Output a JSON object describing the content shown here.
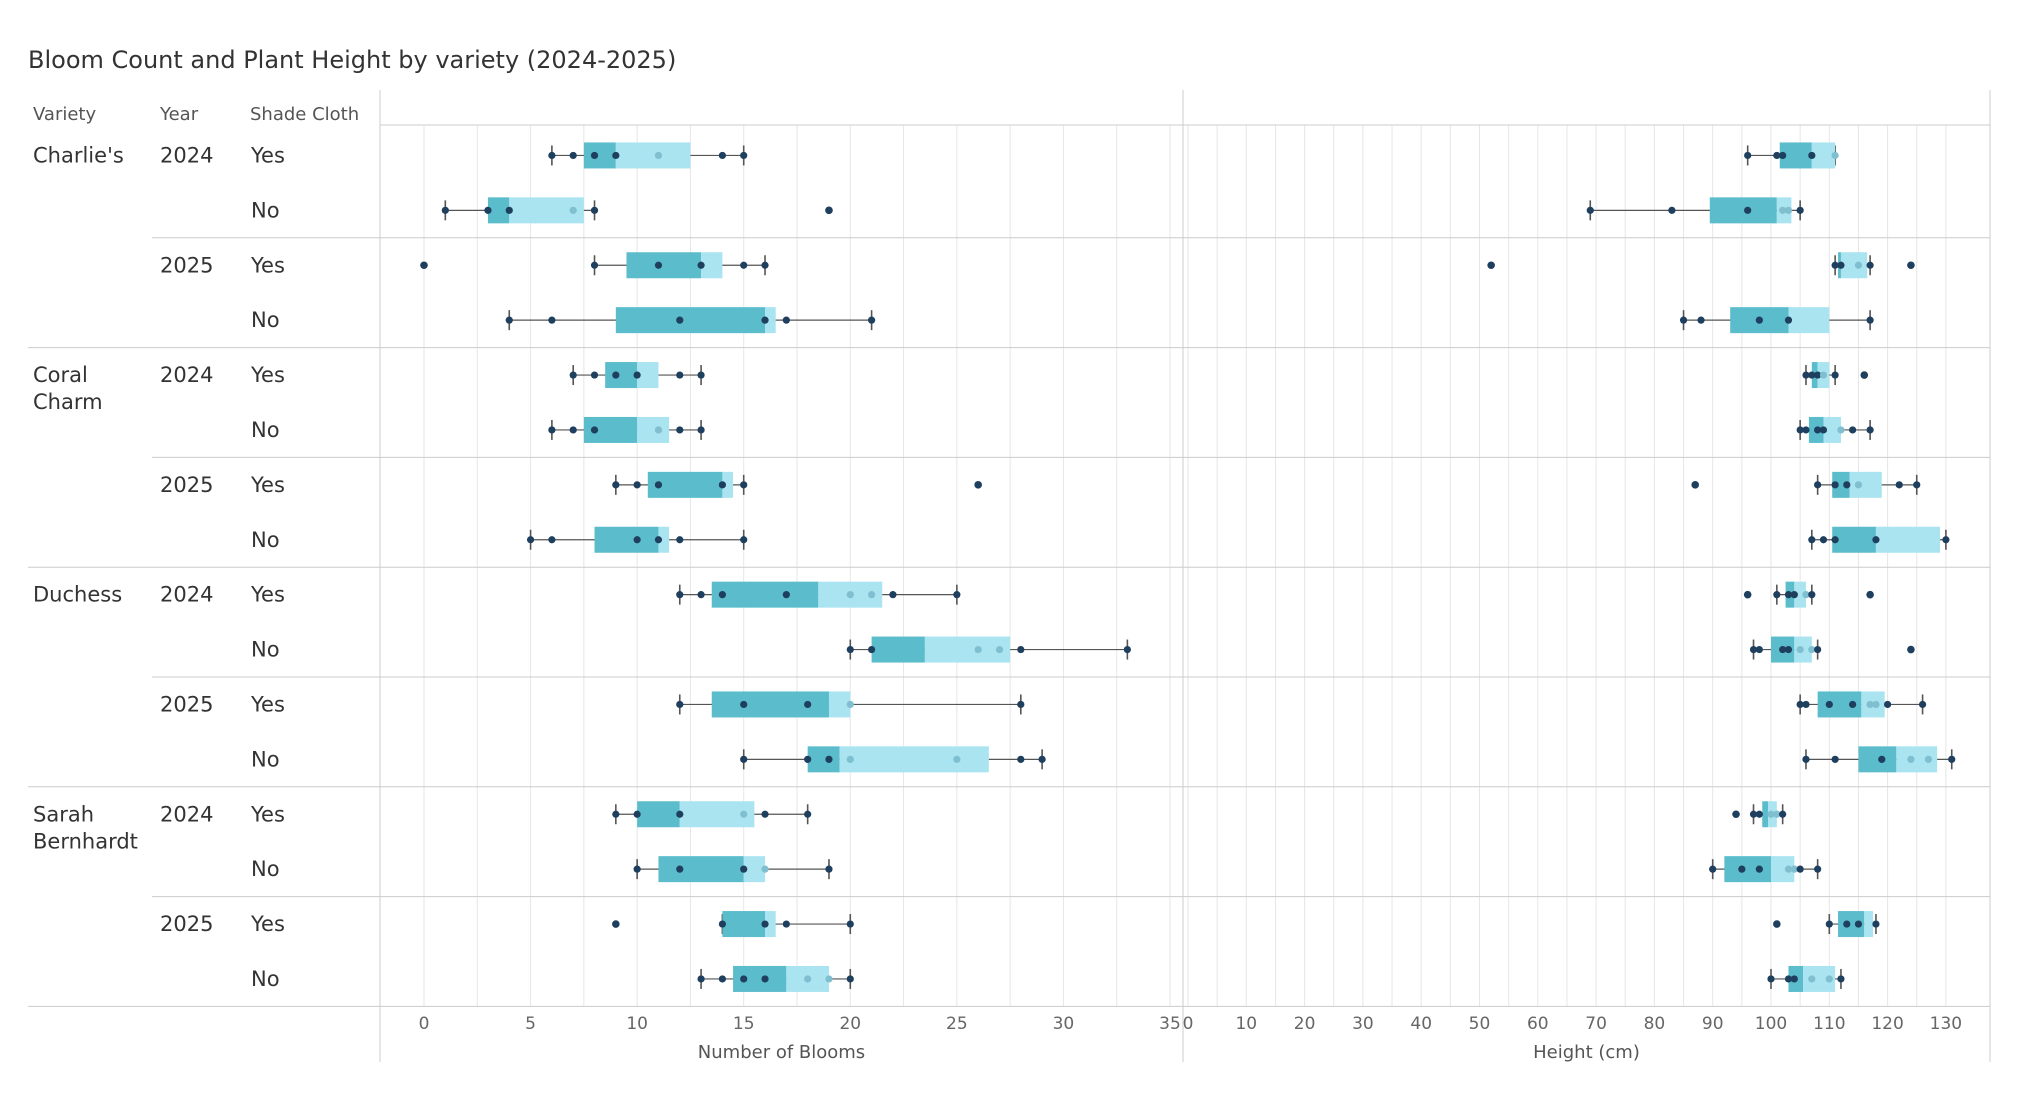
{
  "title": "Bloom Count and Plant Height by variety (2024-2025)",
  "colors": {
    "q1_box": "#5bbccc",
    "q3_box": "#a9e4f0",
    "point": "#1f3f5f",
    "point_faint": "#7fbfd0",
    "whisker": "#555555",
    "grid": "#e6e6e6",
    "divider": "#cccccc"
  },
  "headers": {
    "variety": "Variety",
    "year": "Year",
    "shade": "Shade Cloth"
  },
  "chart_data": [
    {
      "type": "box",
      "xlabel": "Number of Blooms",
      "xlim": [
        -2,
        35
      ],
      "ticks": [
        "0",
        "5",
        "10",
        "15",
        "20",
        "25",
        "30",
        "35"
      ],
      "tick_values": [
        0,
        5,
        10,
        15,
        20,
        25,
        30,
        35
      ],
      "rows": [
        {
          "variety": "Charlie's",
          "year": "2024",
          "shade": "Yes",
          "whisker": [
            6,
            15
          ],
          "box": [
            7.5,
            9,
            12.5
          ],
          "points": [
            6,
            7,
            8,
            9,
            11,
            14,
            15
          ],
          "outliers": []
        },
        {
          "variety": "Charlie's",
          "year": "2024",
          "shade": "No",
          "whisker": [
            1,
            8
          ],
          "box": [
            3,
            4,
            7.5
          ],
          "points": [
            1,
            3,
            4,
            7,
            8
          ],
          "outliers": [
            19
          ]
        },
        {
          "variety": "Charlie's",
          "year": "2025",
          "shade": "Yes",
          "whisker": [
            8,
            16
          ],
          "box": [
            9.5,
            13,
            14
          ],
          "points": [
            8,
            11,
            13,
            15,
            16
          ],
          "outliers": [
            0
          ]
        },
        {
          "variety": "Charlie's",
          "year": "2025",
          "shade": "No",
          "whisker": [
            4,
            21
          ],
          "box": [
            9,
            16,
            16.5
          ],
          "points": [
            4,
            6,
            12,
            16,
            17,
            21
          ],
          "outliers": []
        },
        {
          "variety": "Coral Charm",
          "year": "2024",
          "shade": "Yes",
          "whisker": [
            7,
            13
          ],
          "box": [
            8.5,
            10,
            11
          ],
          "points": [
            7,
            8,
            9,
            10,
            12,
            13
          ],
          "outliers": []
        },
        {
          "variety": "Coral Charm",
          "year": "2024",
          "shade": "No",
          "whisker": [
            6,
            13
          ],
          "box": [
            7.5,
            10,
            11.5
          ],
          "points": [
            6,
            7,
            8,
            11,
            12,
            13
          ],
          "outliers": []
        },
        {
          "variety": "Coral Charm",
          "year": "2025",
          "shade": "Yes",
          "whisker": [
            9,
            15
          ],
          "box": [
            10.5,
            14,
            14.5
          ],
          "points": [
            9,
            10,
            11,
            14,
            15
          ],
          "outliers": [
            26
          ]
        },
        {
          "variety": "Coral Charm",
          "year": "2025",
          "shade": "No",
          "whisker": [
            5,
            15
          ],
          "box": [
            8,
            11,
            11.5
          ],
          "points": [
            5,
            6,
            10,
            11,
            12,
            15
          ],
          "outliers": []
        },
        {
          "variety": "Duchess",
          "year": "2024",
          "shade": "Yes",
          "whisker": [
            12,
            25
          ],
          "box": [
            13.5,
            18.5,
            21.5
          ],
          "points": [
            12,
            13,
            14,
            17,
            20,
            21,
            22,
            25
          ],
          "outliers": []
        },
        {
          "variety": "Duchess",
          "year": "2024",
          "shade": "No",
          "whisker": [
            20,
            33
          ],
          "box": [
            21,
            23.5,
            27.5
          ],
          "points": [
            20,
            21,
            26,
            27,
            28,
            33
          ],
          "outliers": []
        },
        {
          "variety": "Duchess",
          "year": "2025",
          "shade": "Yes",
          "whisker": [
            12,
            28
          ],
          "box": [
            13.5,
            19,
            20
          ],
          "points": [
            12,
            15,
            18,
            20,
            28
          ],
          "outliers": []
        },
        {
          "variety": "Duchess",
          "year": "2025",
          "shade": "No",
          "whisker": [
            15,
            29
          ],
          "box": [
            18,
            19.5,
            26.5
          ],
          "points": [
            15,
            18,
            19,
            20,
            25,
            28,
            29
          ],
          "outliers": []
        },
        {
          "variety": "Sarah Bernhardt",
          "year": "2024",
          "shade": "Yes",
          "whisker": [
            9,
            18
          ],
          "box": [
            10,
            12,
            15.5
          ],
          "points": [
            9,
            10,
            12,
            15,
            16,
            18
          ],
          "outliers": []
        },
        {
          "variety": "Sarah Bernhardt",
          "year": "2024",
          "shade": "No",
          "whisker": [
            10,
            19
          ],
          "box": [
            11,
            15,
            16
          ],
          "points": [
            10,
            12,
            15,
            16,
            19
          ],
          "outliers": []
        },
        {
          "variety": "Sarah Bernhardt",
          "year": "2025",
          "shade": "Yes",
          "whisker": [
            14,
            20
          ],
          "box": [
            14,
            16,
            16.5
          ],
          "points": [
            14,
            16,
            17,
            20
          ],
          "outliers": [
            9
          ]
        },
        {
          "variety": "Sarah Bernhardt",
          "year": "2025",
          "shade": "No",
          "whisker": [
            13,
            20
          ],
          "box": [
            14.5,
            17,
            19
          ],
          "points": [
            13,
            14,
            15,
            16,
            18,
            19,
            20
          ],
          "outliers": []
        }
      ]
    },
    {
      "type": "box",
      "xlabel": "Height (cm)",
      "xlim": [
        0,
        134
      ],
      "ticks": [
        "0",
        "10",
        "20",
        "30",
        "40",
        "50",
        "60",
        "70",
        "80",
        "90",
        "100",
        "110",
        "120",
        "130"
      ],
      "tick_values": [
        0,
        10,
        20,
        30,
        40,
        50,
        60,
        70,
        80,
        90,
        100,
        110,
        120,
        130
      ],
      "rows": [
        {
          "variety": "Charlie's",
          "year": "2024",
          "shade": "Yes",
          "whisker": [
            96,
            111
          ],
          "box": [
            101.5,
            107,
            111
          ],
          "points": [
            96,
            101,
            102,
            107,
            111
          ],
          "outliers": []
        },
        {
          "variety": "Charlie's",
          "year": "2024",
          "shade": "No",
          "whisker": [
            69,
            105
          ],
          "box": [
            89.5,
            101,
            103.5
          ],
          "points": [
            69,
            83,
            96,
            102,
            103,
            105
          ],
          "outliers": []
        },
        {
          "variety": "Charlie's",
          "year": "2025",
          "shade": "Yes",
          "whisker": [
            111,
            117
          ],
          "box": [
            111.5,
            112,
            116.5
          ],
          "points": [
            111,
            112,
            115,
            117
          ],
          "outliers": [
            52,
            124
          ]
        },
        {
          "variety": "Charlie's",
          "year": "2025",
          "shade": "No",
          "whisker": [
            85,
            117
          ],
          "box": [
            93,
            103,
            110
          ],
          "points": [
            85,
            88,
            98,
            103,
            117
          ],
          "outliers": []
        },
        {
          "variety": "Coral Charm",
          "year": "2024",
          "shade": "Yes",
          "whisker": [
            106,
            111
          ],
          "box": [
            107,
            108,
            110
          ],
          "points": [
            106,
            107,
            108,
            109,
            111
          ],
          "outliers": [
            116
          ]
        },
        {
          "variety": "Coral Charm",
          "year": "2024",
          "shade": "No",
          "whisker": [
            105,
            117
          ],
          "box": [
            106.5,
            109,
            112
          ],
          "points": [
            105,
            106,
            108,
            109,
            112,
            114,
            117
          ],
          "outliers": []
        },
        {
          "variety": "Coral Charm",
          "year": "2025",
          "shade": "Yes",
          "whisker": [
            108,
            125
          ],
          "box": [
            110.5,
            113.5,
            119
          ],
          "points": [
            108,
            111,
            113,
            115,
            122,
            125
          ],
          "outliers": [
            87
          ]
        },
        {
          "variety": "Coral Charm",
          "year": "2025",
          "shade": "No",
          "whisker": [
            107,
            130
          ],
          "box": [
            110.5,
            118,
            129
          ],
          "points": [
            107,
            109,
            111,
            118,
            130
          ],
          "outliers": []
        },
        {
          "variety": "Duchess",
          "year": "2024",
          "shade": "Yes",
          "whisker": [
            101,
            107
          ],
          "box": [
            102.5,
            104,
            106
          ],
          "points": [
            101,
            103,
            104,
            106,
            107
          ],
          "outliers": [
            96,
            117
          ]
        },
        {
          "variety": "Duchess",
          "year": "2024",
          "shade": "No",
          "whisker": [
            97,
            108
          ],
          "box": [
            100,
            104,
            107
          ],
          "points": [
            97,
            98,
            102,
            103,
            105,
            107,
            108
          ],
          "outliers": [
            124
          ]
        },
        {
          "variety": "Duchess",
          "year": "2025",
          "shade": "Yes",
          "whisker": [
            105,
            126
          ],
          "box": [
            108,
            115.5,
            119.5
          ],
          "points": [
            105,
            106,
            110,
            114,
            117,
            118,
            120,
            126
          ],
          "outliers": []
        },
        {
          "variety": "Duchess",
          "year": "2025",
          "shade": "No",
          "whisker": [
            106,
            131
          ],
          "box": [
            115,
            121.5,
            128.5
          ],
          "points": [
            106,
            111,
            119,
            124,
            127,
            131
          ],
          "outliers": []
        },
        {
          "variety": "Sarah Bernhardt",
          "year": "2024",
          "shade": "Yes",
          "whisker": [
            97,
            102
          ],
          "box": [
            98.5,
            99.5,
            101
          ],
          "points": [
            97,
            98,
            100,
            101,
            102
          ],
          "outliers": [
            94
          ]
        },
        {
          "variety": "Sarah Bernhardt",
          "year": "2024",
          "shade": "No",
          "whisker": [
            90,
            108
          ],
          "box": [
            92,
            100,
            104
          ],
          "points": [
            90,
            95,
            98,
            103,
            104,
            105,
            108
          ],
          "outliers": []
        },
        {
          "variety": "Sarah Bernhardt",
          "year": "2025",
          "shade": "Yes",
          "whisker": [
            110,
            118
          ],
          "box": [
            111.5,
            116,
            117.5
          ],
          "points": [
            110,
            113,
            115,
            118
          ],
          "outliers": [
            101
          ]
        },
        {
          "variety": "Sarah Bernhardt",
          "year": "2025",
          "shade": "No",
          "whisker": [
            100,
            112
          ],
          "box": [
            103,
            105.5,
            111
          ],
          "points": [
            100,
            103,
            104,
            107,
            110,
            112
          ],
          "outliers": []
        }
      ]
    }
  ]
}
